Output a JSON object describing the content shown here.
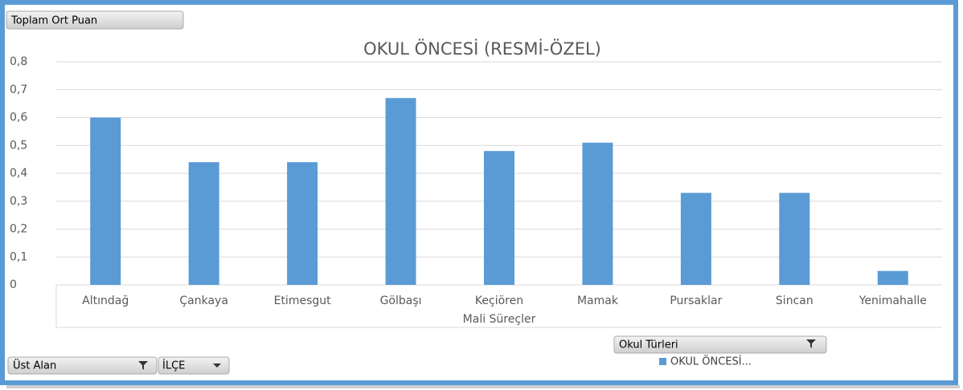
{
  "chart_data": {
    "type": "bar",
    "title": "OKUL ÖNCESİ (RESMİ-ÖZEL)",
    "value_field": "Toplam Ort Puan",
    "x_label": "Mali Süreçler",
    "axis_fields": [
      "Üst Alan",
      "İLÇE"
    ],
    "legend_field": "Okul Türleri",
    "categories": [
      "Altındağ",
      "Çankaya",
      "Etimesgut",
      "Gölbaşı",
      "Keçiören",
      "Mamak",
      "Pursaklar",
      "Sincan",
      "Yenimahalle"
    ],
    "series": [
      {
        "name": "OKUL ÖNCESİ...",
        "color": "#5b9bd5",
        "values": [
          0.6,
          0.44,
          0.44,
          0.67,
          0.48,
          0.51,
          0.33,
          0.33,
          0.05
        ]
      }
    ],
    "ylim": [
      0,
      0.8
    ],
    "yticks": [
      0,
      {
        "value": 0.1,
        "label": "0,1"
      },
      {
        "value": 0.2,
        "label": "0,2"
      },
      {
        "value": 0.3,
        "label": "0,3"
      },
      {
        "value": 0.4,
        "label": "0,4"
      },
      {
        "value": 0.5,
        "label": "0,5"
      },
      {
        "value": 0.6,
        "label": "0,6"
      },
      {
        "value": 0.7,
        "label": "0,7"
      },
      {
        "value": 0.8,
        "label": "0,8"
      }
    ],
    "grid": true
  }
}
